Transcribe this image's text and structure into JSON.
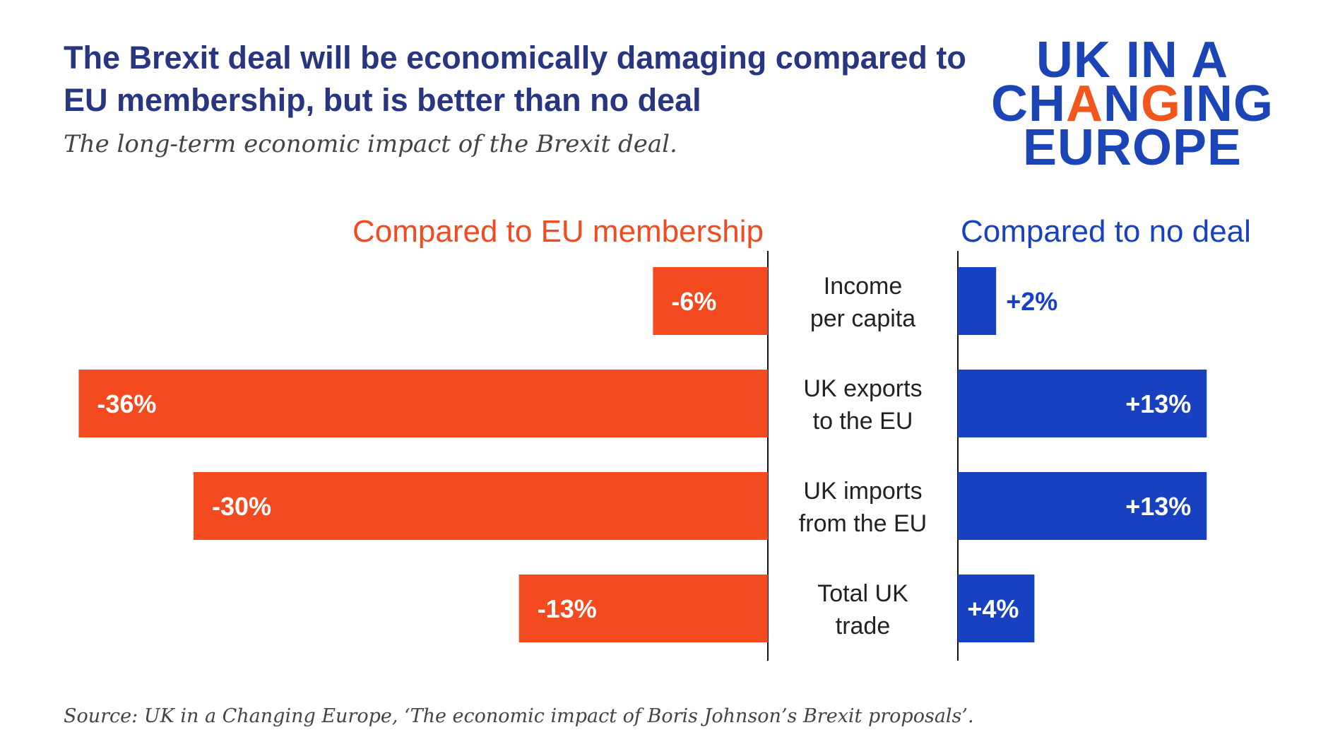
{
  "title": "The Brexit deal will be economically damaging compared to EU membership, but is better than no deal",
  "subtitle": "The long-term economic impact of the Brexit deal.",
  "logo": {
    "line1": "UK IN A",
    "line2_a": "CH",
    "line2_b": "A",
    "line2_c": "N",
    "line2_d": "G",
    "line2_e": "I",
    "line2_f": "NG",
    "line3": "EUROPE"
  },
  "source": "Source: UK in a Changing Europe, ‘The economic impact of Boris Johnson’s Brexit proposals’.",
  "colors": {
    "eu": "#f44a1f",
    "nodeal": "#1741c1",
    "title": "#283580"
  },
  "chart_data": {
    "type": "bar",
    "categories": [
      "Income per capita",
      "UK exports to the EU",
      "UK imports from the EU",
      "Total UK trade"
    ],
    "category_lines": [
      [
        "Income",
        "per capita"
      ],
      [
        "UK exports",
        "to the EU"
      ],
      [
        "UK imports",
        "from the EU"
      ],
      [
        "Total UK",
        "trade"
      ]
    ],
    "series": [
      {
        "name": "Compared to EU membership",
        "values": [
          -6,
          -36,
          -30,
          -13
        ],
        "labels": [
          "-6%",
          "-36%",
          "-30%",
          "-13%"
        ],
        "color": "#f44a1f"
      },
      {
        "name": "Compared to no deal",
        "values": [
          2,
          13,
          13,
          4
        ],
        "labels": [
          "+2%",
          "+13%",
          "+13%",
          "+4%"
        ],
        "color": "#1741c1"
      }
    ],
    "grid": false
  }
}
